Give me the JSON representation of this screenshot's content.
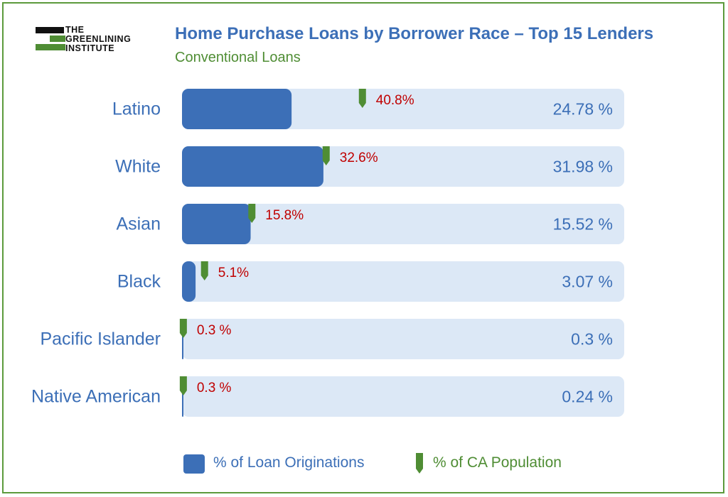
{
  "logo": {
    "line1": "THE",
    "line2": "GREENLINING",
    "line3": "INSTITUTE"
  },
  "header": {
    "title": "Home Purchase Loans by Borrower Race – Top 15 Lenders",
    "subtitle": "Conventional Loans"
  },
  "colors": {
    "bar": "#3c6fb7",
    "track": "#dce8f6",
    "marker": "#4f8d34",
    "population_label": "#c00000",
    "category_label": "#3c6fb7",
    "frame": "#5c9a3c"
  },
  "legend": {
    "bar_label": "% of Loan Originations",
    "marker_label": "% of CA Population"
  },
  "chart_data": {
    "type": "bar",
    "orientation": "horizontal",
    "categories": [
      "Latino",
      "White",
      "Asian",
      "Black",
      "Pacific Islander",
      "Native American"
    ],
    "series": [
      {
        "name": "% of Loan Originations",
        "values": [
          24.78,
          31.98,
          15.52,
          3.07,
          0.3,
          0.24
        ],
        "labels": [
          "24.78 %",
          "31.98 %",
          "15.52 %",
          "3.07 %",
          "0.3 %",
          "0.24 %"
        ]
      },
      {
        "name": "% of CA Population",
        "values": [
          40.8,
          32.6,
          15.8,
          5.1,
          0.3,
          0.3
        ],
        "labels": [
          "40.8%",
          "32.6%",
          "15.8%",
          "5.1%",
          "0.3 %",
          "0.3 %"
        ]
      }
    ],
    "xlim": [
      0,
      100
    ],
    "legend_position": "bottom"
  }
}
